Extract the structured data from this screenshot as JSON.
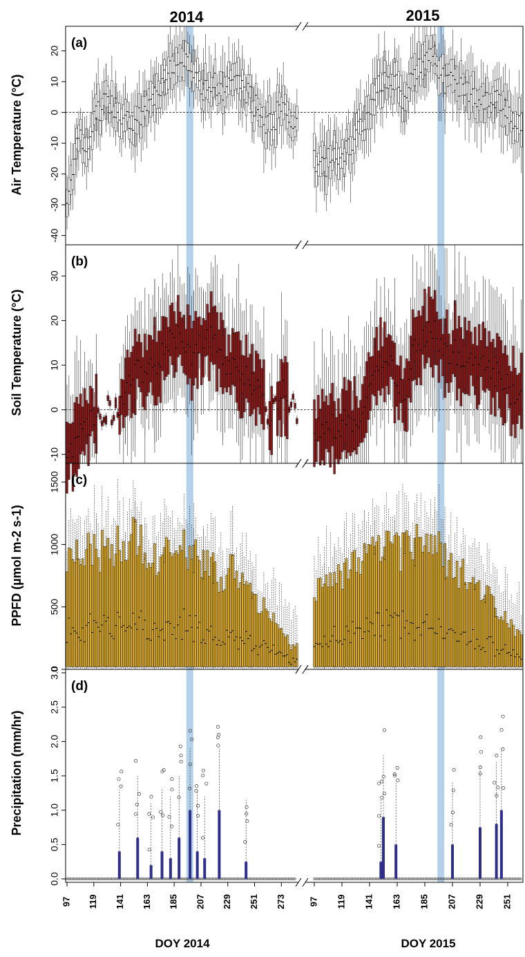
{
  "chart_data": [
    {
      "panel": "(a)",
      "type": "box",
      "ylabel": "Air Temperature (°C)",
      "ylim": [
        -43,
        28
      ],
      "yticks": [
        -40,
        -30,
        -20,
        -10,
        0,
        10,
        20
      ],
      "ytick_labels": [
        "-40",
        "-30",
        "-20",
        "-10",
        "0",
        "10",
        "20"
      ],
      "reference_line": 0,
      "box_color": "#ffffff",
      "series": [
        {
          "name": "2014",
          "x": [
            97,
            105,
            113,
            121,
            129,
            137,
            145,
            153,
            161,
            169,
            177,
            185,
            193,
            201,
            209,
            217,
            225,
            233,
            241,
            249,
            257,
            265,
            273,
            281
          ],
          "values": [
            -30,
            -8,
            -12,
            0,
            3,
            2,
            -2,
            -6,
            3,
            5,
            12,
            14,
            16,
            14,
            8,
            10,
            6,
            12,
            8,
            4,
            -2,
            -4,
            2,
            -2
          ]
        },
        {
          "name": "2015",
          "x": [
            97,
            105,
            113,
            121,
            129,
            137,
            145,
            153,
            161,
            169,
            177,
            185,
            193,
            201,
            209,
            217,
            225,
            233,
            241,
            249,
            257
          ],
          "values": [
            -16,
            -18,
            -12,
            -14,
            -8,
            -4,
            6,
            12,
            10,
            2,
            14,
            16,
            18,
            10,
            10,
            8,
            5,
            5,
            4,
            2,
            -2
          ]
        }
      ]
    },
    {
      "panel": "(b)",
      "type": "box",
      "ylabel": "Soil Temperature (°C)",
      "ylim": [
        -12,
        37
      ],
      "yticks": [
        -10,
        0,
        10,
        20,
        30
      ],
      "ytick_labels": [
        "-10",
        "0",
        "10",
        "20",
        "30"
      ],
      "reference_line": 0,
      "box_color": "#8b1a1a",
      "series": [
        {
          "name": "2014",
          "x": [
            97,
            105,
            113,
            121,
            129,
            137,
            145,
            153,
            161,
            169,
            177,
            185,
            193,
            201,
            209,
            217,
            225,
            233,
            241,
            249,
            257,
            265,
            273,
            281
          ],
          "values": [
            -11,
            -7,
            -4,
            -1,
            0,
            0,
            4,
            8,
            9,
            10,
            13,
            16,
            16,
            12,
            15,
            16,
            10,
            10,
            8,
            6,
            2,
            -2,
            5,
            0
          ]
        },
        {
          "name": "2015",
          "x": [
            97,
            105,
            113,
            121,
            129,
            137,
            145,
            153,
            161,
            169,
            177,
            185,
            193,
            201,
            209,
            217,
            225,
            233,
            241,
            249,
            257
          ],
          "values": [
            -4.5,
            -4,
            -3.5,
            -3,
            -2,
            -1,
            10,
            12,
            8,
            4,
            14,
            16,
            18,
            12,
            13,
            12,
            10,
            10,
            8,
            6,
            3
          ]
        }
      ]
    },
    {
      "panel": "(c)",
      "type": "box",
      "ylabel": "PPFD (µmol m-2 s-1)",
      "ylim": [
        0,
        1650
      ],
      "yticks": [
        0,
        500,
        1000,
        1500
      ],
      "ytick_labels": [
        "0",
        "500",
        "1000",
        "1500"
      ],
      "box_color": "#d6a72a",
      "series": [
        {
          "name": "2014",
          "x": [
            97,
            105,
            113,
            121,
            129,
            137,
            145,
            153,
            161,
            169,
            177,
            185,
            193,
            201,
            209,
            217,
            225,
            233,
            241,
            249,
            257,
            265,
            273,
            281
          ],
          "values": [
            900,
            950,
            1000,
            1000,
            1050,
            1050,
            1100,
            1150,
            1000,
            950,
            1000,
            950,
            1050,
            1000,
            900,
            850,
            800,
            850,
            750,
            650,
            550,
            450,
            350,
            200
          ]
        },
        {
          "name": "2015",
          "x": [
            97,
            105,
            113,
            121,
            129,
            137,
            145,
            153,
            161,
            169,
            177,
            185,
            193,
            201,
            209,
            217,
            225,
            233,
            241,
            249,
            257
          ],
          "values": [
            700,
            750,
            800,
            850,
            950,
            1000,
            1000,
            1050,
            1000,
            1000,
            1100,
            1100,
            1050,
            950,
            900,
            800,
            750,
            650,
            550,
            450,
            350
          ]
        }
      ]
    },
    {
      "panel": "(d)",
      "type": "box",
      "ylabel": "Precipitation (mm/hr)",
      "ylim": [
        -0.05,
        3.05
      ],
      "yticks": [
        0.0,
        0.5,
        1.0,
        1.5,
        2.0,
        2.5,
        3.0
      ],
      "ytick_labels": [
        "0.0",
        "0.5",
        "1.0",
        "1.5",
        "2.0",
        "2.5",
        "3.0"
      ],
      "box_color": "#2e2e8c",
      "series": [
        {
          "name": "2014",
          "x": [
            140,
            155,
            166,
            175,
            182,
            189,
            198,
            204,
            210,
            222,
            244
          ],
          "values": [
            0.4,
            0.6,
            0.2,
            0.4,
            0.3,
            0.6,
            1.0,
            0.4,
            0.3,
            1.0,
            0.25
          ]
        },
        {
          "name": "2015",
          "x": [
            150,
            152,
            162,
            207,
            229,
            242,
            246
          ],
          "values": [
            0.25,
            0.9,
            0.5,
            0.5,
            0.75,
            0.8,
            1.0
          ]
        }
      ]
    }
  ],
  "years": [
    "2014",
    "2015"
  ],
  "x_ticks_2014": [
    "97",
    "119",
    "141",
    "163",
    "185",
    "207",
    "229",
    "251",
    "273"
  ],
  "x_ticks_2015": [
    "97",
    "119",
    "141",
    "163",
    "185",
    "207",
    "229",
    "251"
  ],
  "xlabel_2014": "DOY 2014",
  "xlabel_2015": "DOY 2015",
  "highlight": {
    "color": "#a8c9e6",
    "doy_2014": [
      195,
      200
    ],
    "doy_2015": [
      195,
      200
    ]
  },
  "axis_break": "//"
}
